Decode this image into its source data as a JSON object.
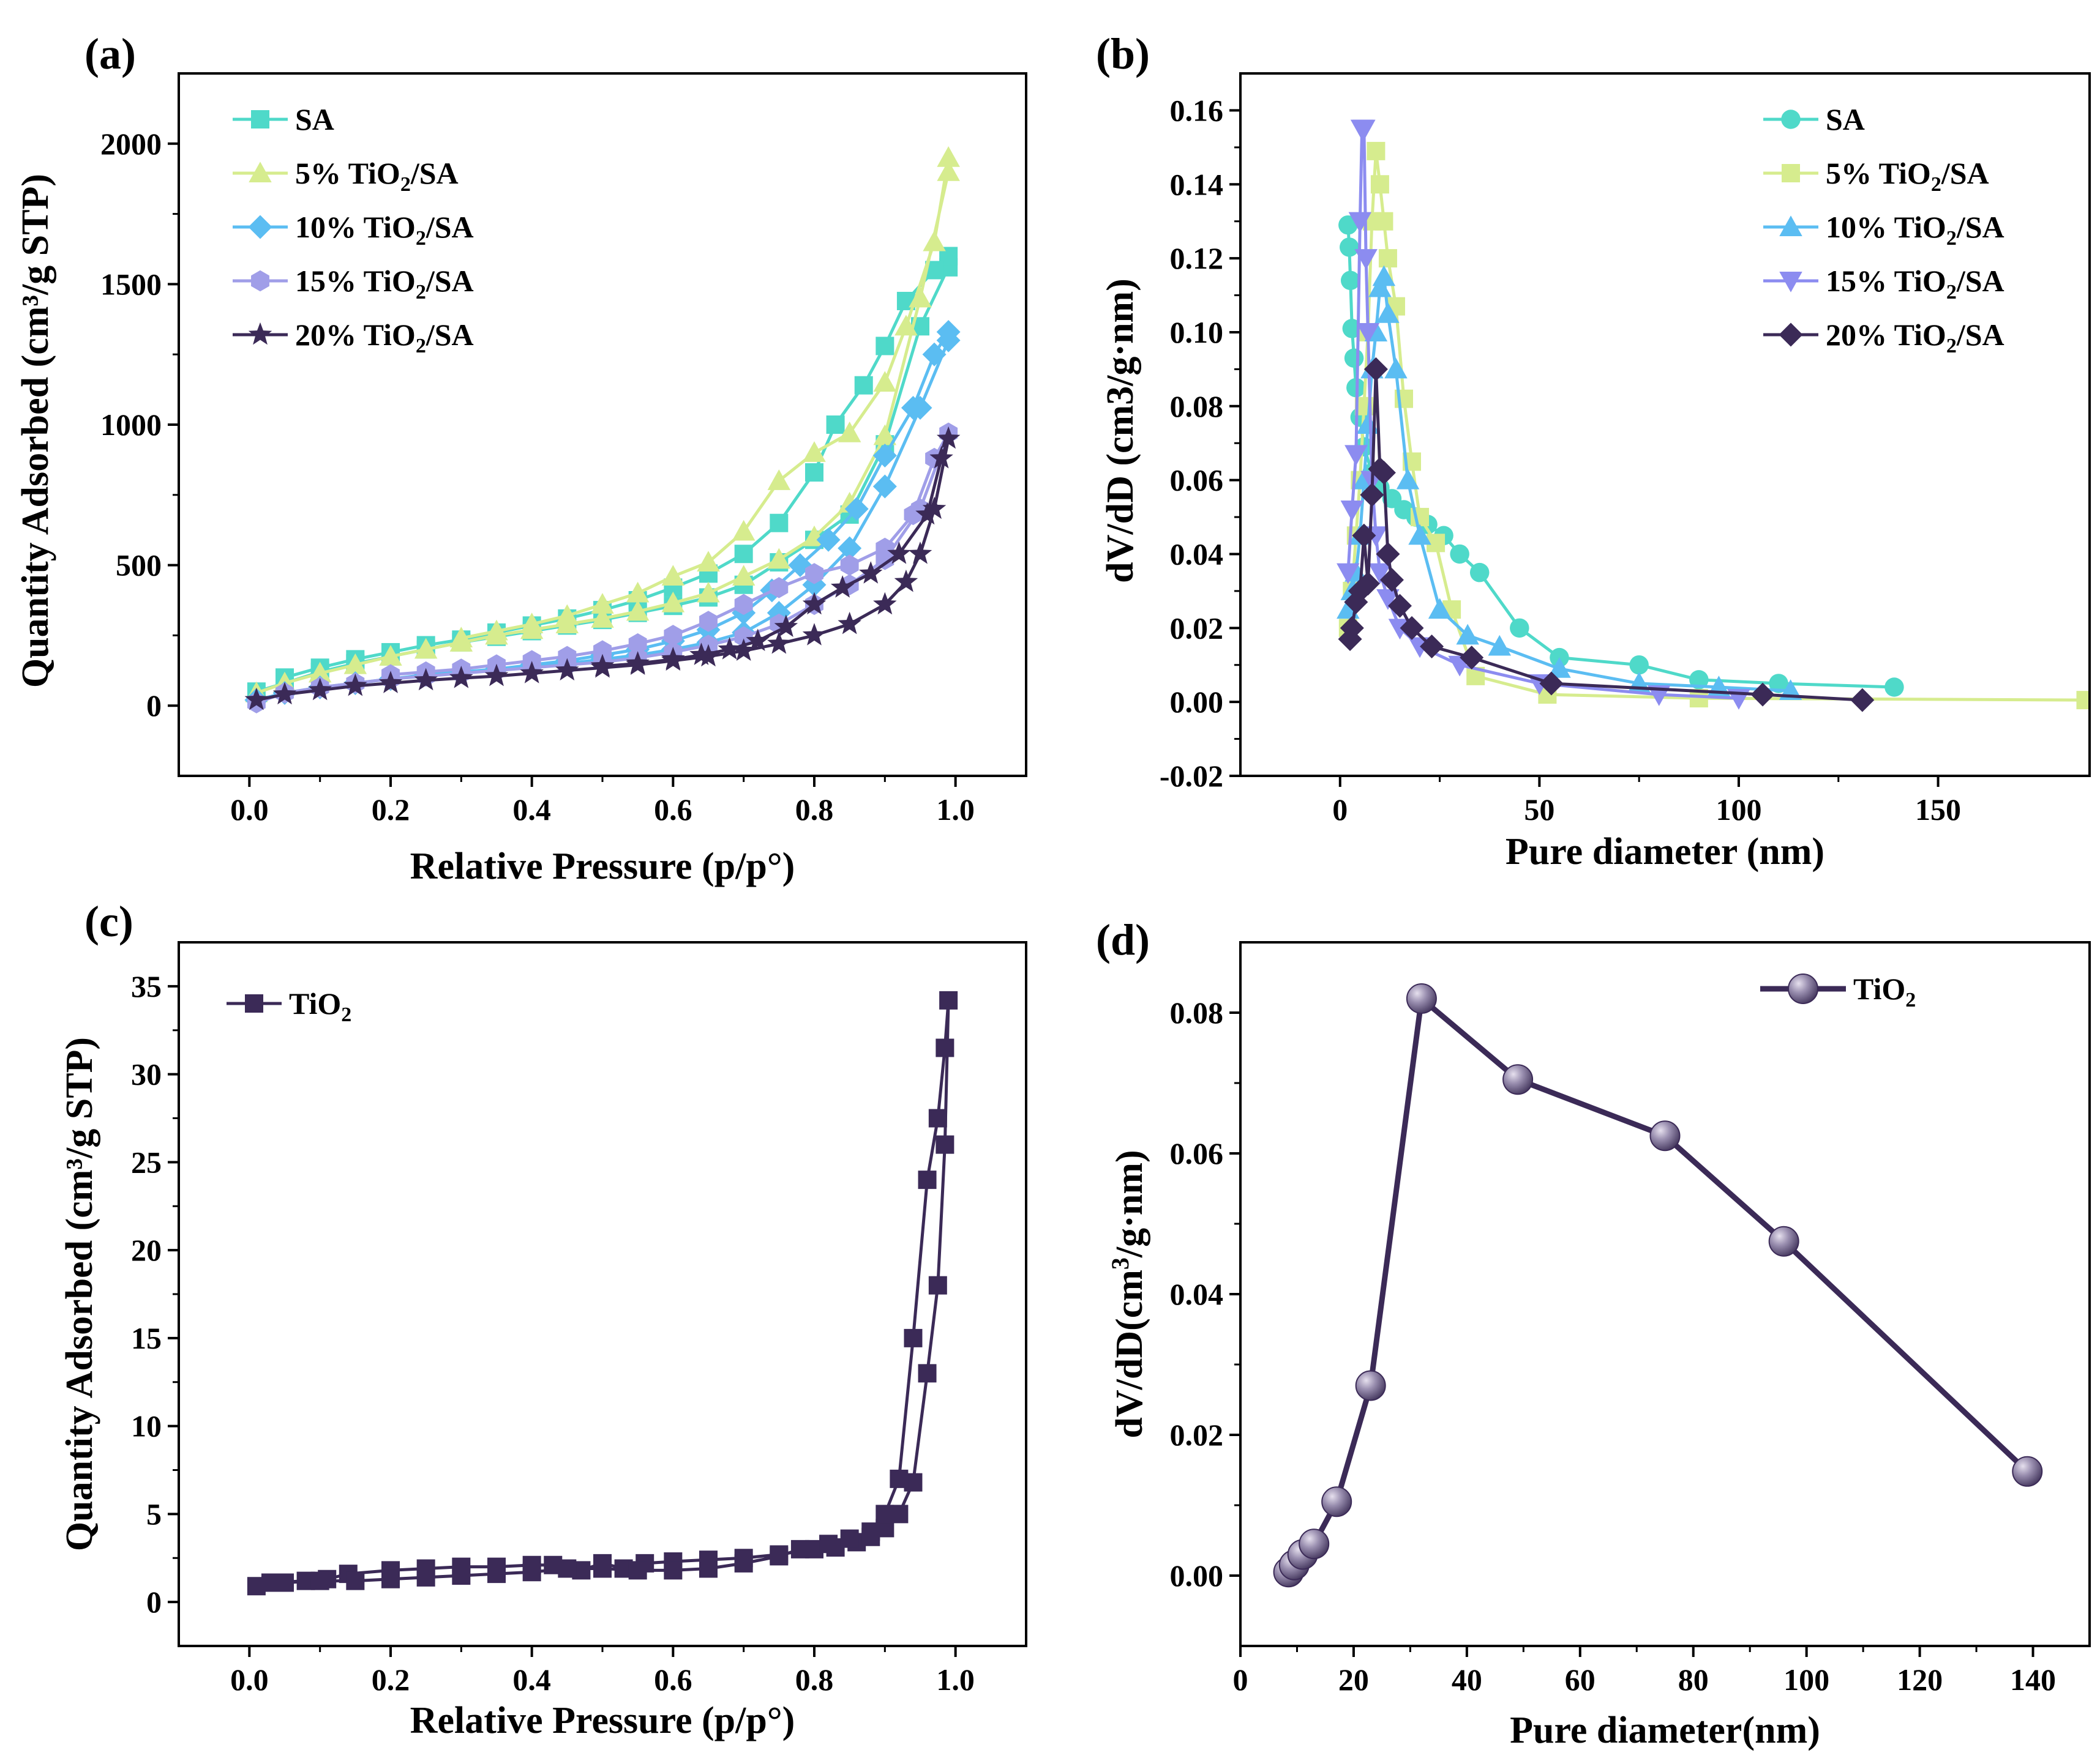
{
  "chart_data": [
    {
      "panel": "(a)",
      "type": "scatter",
      "xlabel": "Relative Pressure (p/p°)",
      "ylabel": "Quantity Adsorbed (cm³/g STP)",
      "xlim": [
        -0.1,
        1.1
      ],
      "ylim": [
        -250,
        2250
      ],
      "xticks": [
        0.0,
        0.2,
        0.4,
        0.6,
        0.8,
        1.0
      ],
      "xtick_labels": [
        "0.0",
        "0.2",
        "0.4",
        "0.6",
        "0.8",
        "1.0"
      ],
      "yticks": [
        0,
        500,
        1000,
        1500,
        2000
      ],
      "ytick_labels": [
        "0",
        "500",
        "1000",
        "1500",
        "2000"
      ],
      "legend_position": "top-left",
      "series": [
        {
          "name": "SA",
          "label_main": "SA",
          "label_sub": "",
          "label_tail": "",
          "marker": "square",
          "color": "#4fd9c9",
          "x": [
            0.01,
            0.05,
            0.1,
            0.15,
            0.2,
            0.25,
            0.3,
            0.35,
            0.4,
            0.45,
            0.5,
            0.55,
            0.6,
            0.65,
            0.7,
            0.75,
            0.8,
            0.85,
            0.9,
            0.95,
            0.99,
            0.99,
            0.97,
            0.93,
            0.9,
            0.87,
            0.83,
            0.8,
            0.75,
            0.7,
            0.65,
            0.6,
            0.55,
            0.5,
            0.45,
            0.4,
            0.35,
            0.3,
            0.25,
            0.2,
            0.15,
            0.1,
            0.05
          ],
          "y": [
            50,
            80,
            120,
            150,
            175,
            200,
            225,
            245,
            265,
            285,
            305,
            330,
            355,
            385,
            430,
            510,
            590,
            680,
            930,
            1350,
            1560,
            1600,
            1550,
            1440,
            1280,
            1140,
            1000,
            830,
            650,
            540,
            470,
            420,
            375,
            340,
            310,
            285,
            260,
            235,
            215,
            190,
            165,
            135,
            100
          ]
        },
        {
          "name": "5% TiO2/SA",
          "label_main": "5% TiO",
          "label_sub": "2",
          "label_tail": "/SA",
          "marker": "triangle-up",
          "color": "#d6ec8e",
          "x": [
            0.01,
            0.05,
            0.1,
            0.15,
            0.2,
            0.25,
            0.3,
            0.35,
            0.4,
            0.45,
            0.5,
            0.55,
            0.6,
            0.65,
            0.7,
            0.75,
            0.8,
            0.85,
            0.9,
            0.95,
            0.99,
            0.99,
            0.97,
            0.93,
            0.9,
            0.85,
            0.8,
            0.75,
            0.7,
            0.65,
            0.6,
            0.55,
            0.5,
            0.45,
            0.4,
            0.35,
            0.3
          ],
          "y": [
            45,
            80,
            115,
            145,
            175,
            200,
            225,
            250,
            270,
            290,
            310,
            335,
            365,
            400,
            460,
            520,
            600,
            720,
            960,
            1450,
            1900,
            1950,
            1650,
            1350,
            1150,
            970,
            900,
            800,
            620,
            510,
            460,
            400,
            360,
            320,
            290,
            265,
            240
          ]
        },
        {
          "name": "10% TiO2/SA",
          "label_main": "10% TiO",
          "label_sub": "2",
          "label_tail": "/SA",
          "marker": "diamond",
          "color": "#5bbdf2",
          "x": [
            0.01,
            0.05,
            0.1,
            0.15,
            0.2,
            0.25,
            0.3,
            0.35,
            0.4,
            0.45,
            0.5,
            0.55,
            0.6,
            0.65,
            0.7,
            0.75,
            0.8,
            0.85,
            0.9,
            0.95,
            0.99,
            0.99,
            0.97,
            0.94,
            0.9,
            0.86,
            0.82,
            0.78,
            0.74,
            0.7,
            0.65,
            0.6,
            0.55,
            0.5,
            0.45,
            0.4,
            0.35
          ],
          "y": [
            20,
            45,
            65,
            80,
            95,
            110,
            120,
            130,
            140,
            150,
            165,
            180,
            200,
            225,
            260,
            330,
            430,
            560,
            780,
            1060,
            1300,
            1330,
            1250,
            1060,
            890,
            700,
            590,
            500,
            410,
            330,
            270,
            230,
            200,
            180,
            160,
            145,
            130
          ]
        },
        {
          "name": "15% TiO2/SA",
          "label_main": "15% TiO",
          "label_sub": "2",
          "label_tail": "/SA",
          "marker": "hexagon",
          "color": "#a09ee8",
          "x": [
            0.01,
            0.05,
            0.1,
            0.15,
            0.2,
            0.25,
            0.3,
            0.35,
            0.4,
            0.45,
            0.5,
            0.55,
            0.6,
            0.65,
            0.7,
            0.75,
            0.8,
            0.85,
            0.9,
            0.95,
            0.99,
            0.97,
            0.94,
            0.9,
            0.85,
            0.8,
            0.75,
            0.7,
            0.65,
            0.6,
            0.55,
            0.5,
            0.45,
            0.4,
            0.35,
            0.3,
            0.25,
            0.2
          ],
          "y": [
            10,
            45,
            65,
            80,
            95,
            105,
            115,
            125,
            135,
            145,
            155,
            170,
            190,
            215,
            245,
            290,
            360,
            430,
            520,
            700,
            970,
            880,
            680,
            560,
            500,
            470,
            420,
            360,
            300,
            250,
            220,
            195,
            175,
            160,
            145,
            130,
            120,
            110
          ]
        },
        {
          "name": "20% TiO2/SA",
          "label_main": "20% TiO",
          "label_sub": "2",
          "label_tail": "/SA",
          "marker": "star",
          "color": "#3b2a57",
          "x": [
            0.01,
            0.05,
            0.1,
            0.15,
            0.2,
            0.25,
            0.3,
            0.35,
            0.4,
            0.45,
            0.5,
            0.55,
            0.6,
            0.65,
            0.7,
            0.75,
            0.8,
            0.85,
            0.9,
            0.93,
            0.95,
            0.97,
            0.99,
            0.98,
            0.96,
            0.92,
            0.88,
            0.84,
            0.8,
            0.76,
            0.72,
            0.68,
            0.64,
            0.6,
            0.55,
            0.5
          ],
          "y": [
            20,
            40,
            55,
            70,
            80,
            90,
            98,
            105,
            115,
            125,
            135,
            145,
            160,
            175,
            195,
            220,
            250,
            290,
            360,
            440,
            540,
            700,
            950,
            880,
            680,
            540,
            470,
            420,
            360,
            280,
            230,
            200,
            180,
            165,
            150,
            140
          ]
        }
      ]
    },
    {
      "panel": "(b)",
      "type": "scatter",
      "xlabel": "Pure diameter (nm)",
      "ylabel": "dV/dD (cm3/g·nm)",
      "xlim": [
        -25,
        188
      ],
      "ylim": [
        -0.02,
        0.17
      ],
      "xticks": [
        0,
        50,
        100,
        150
      ],
      "xtick_labels": [
        "0",
        "50",
        "100",
        "150"
      ],
      "yticks": [
        -0.02,
        0.0,
        0.02,
        0.04,
        0.06,
        0.08,
        0.1,
        0.12,
        0.14,
        0.16
      ],
      "ytick_labels": [
        "-0.02",
        "0.00",
        "0.02",
        "0.04",
        "0.06",
        "0.08",
        "0.10",
        "0.12",
        "0.14",
        "0.16"
      ],
      "legend_position": "top-right",
      "series": [
        {
          "name": "SA",
          "label_main": "SA",
          "label_sub": "",
          "label_tail": "",
          "marker": "circle",
          "color": "#4fd9c9",
          "x": [
            2,
            2.3,
            2.6,
            3,
            3.5,
            4,
            5,
            6,
            8,
            10,
            13,
            16,
            19,
            22,
            26,
            30,
            35,
            45,
            55,
            75,
            90,
            110,
            139
          ],
          "y": [
            0.129,
            0.123,
            0.114,
            0.101,
            0.093,
            0.085,
            0.077,
            0.069,
            0.062,
            0.058,
            0.055,
            0.052,
            0.05,
            0.048,
            0.045,
            0.04,
            0.035,
            0.02,
            0.012,
            0.01,
            0.006,
            0.005,
            0.004
          ]
        },
        {
          "name": "5% TiO2/SA",
          "label_main": "5% TiO",
          "label_sub": "2",
          "label_tail": "/SA",
          "marker": "square",
          "color": "#d6ec8e",
          "x": [
            2,
            3,
            4,
            5,
            6,
            7,
            8,
            9,
            10,
            11,
            12,
            14,
            16,
            18,
            20,
            24,
            28,
            34,
            52,
            90,
            187
          ],
          "y": [
            0.02,
            0.03,
            0.045,
            0.06,
            0.08,
            0.1,
            0.13,
            0.149,
            0.14,
            0.13,
            0.12,
            0.107,
            0.082,
            0.065,
            0.05,
            0.043,
            0.025,
            0.007,
            0.002,
            0.001,
            0.0005
          ]
        },
        {
          "name": "10% TiO2/SA",
          "label_main": "10% TiO",
          "label_sub": "2",
          "label_tail": "/SA",
          "marker": "triangle-up",
          "color": "#5bbdf2",
          "x": [
            2,
            3,
            4,
            5,
            6,
            7,
            8,
            9,
            10,
            11,
            12,
            14,
            17,
            20,
            25,
            32,
            40,
            55,
            75,
            95,
            113
          ],
          "y": [
            0.025,
            0.03,
            0.035,
            0.045,
            0.06,
            0.075,
            0.09,
            0.1,
            0.112,
            0.115,
            0.105,
            0.09,
            0.06,
            0.045,
            0.025,
            0.018,
            0.015,
            0.009,
            0.005,
            0.004,
            0.003
          ]
        },
        {
          "name": "15% TiO2/SA",
          "label_main": "15% TiO",
          "label_sub": "2",
          "label_tail": "/SA",
          "marker": "triangle-down",
          "color": "#8c8cf0",
          "x": [
            2,
            3,
            4,
            5,
            5.5,
            6,
            6.5,
            7,
            8,
            9,
            10,
            12,
            15,
            20,
            30,
            50,
            80,
            100
          ],
          "y": [
            0.035,
            0.052,
            0.067,
            0.13,
            0.155,
            0.155,
            0.12,
            0.1,
            0.06,
            0.045,
            0.035,
            0.028,
            0.02,
            0.015,
            0.01,
            0.005,
            0.002,
            0.001
          ]
        },
        {
          "name": "20% TiO2/SA",
          "label_main": "20% TiO",
          "label_sub": "2",
          "label_tail": "/SA",
          "marker": "diamond",
          "color": "#3b2a57",
          "x": [
            2.5,
            3,
            4,
            5,
            6,
            7,
            8,
            9,
            10,
            11,
            12,
            13,
            15,
            18,
            23,
            33,
            53,
            106,
            131
          ],
          "y": [
            0.017,
            0.02,
            0.027,
            0.03,
            0.045,
            0.032,
            0.056,
            0.09,
            0.063,
            0.062,
            0.04,
            0.033,
            0.026,
            0.02,
            0.015,
            0.012,
            0.005,
            0.002,
            0.0005
          ]
        }
      ]
    },
    {
      "panel": "(c)",
      "type": "scatter",
      "xlabel": "Relative Pressure (p/p°)",
      "ylabel": "Quantity Adsorbed (cm³/g STP)",
      "xlim": [
        -0.1,
        1.1
      ],
      "ylim": [
        -2.5,
        37.5
      ],
      "xticks": [
        0.0,
        0.2,
        0.4,
        0.6,
        0.8,
        1.0
      ],
      "xtick_labels": [
        "0.0",
        "0.2",
        "0.4",
        "0.6",
        "0.8",
        "1.0"
      ],
      "yticks": [
        0,
        5,
        10,
        15,
        20,
        25,
        30,
        35
      ],
      "ytick_labels": [
        "0",
        "5",
        "10",
        "15",
        "20",
        "25",
        "30",
        "35"
      ],
      "legend_position": "top-left",
      "series": [
        {
          "name": "TiO2",
          "label_main": "TiO",
          "label_sub": "2",
          "label_tail": "",
          "marker": "square",
          "color": "#3b2a57",
          "x": [
            0.01,
            0.03,
            0.08,
            0.11,
            0.14,
            0.2,
            0.25,
            0.3,
            0.35,
            0.4,
            0.43,
            0.47,
            0.5,
            0.53,
            0.56,
            0.6,
            0.65,
            0.7,
            0.75,
            0.8,
            0.83,
            0.86,
            0.88,
            0.9,
            0.92,
            0.94,
            0.96,
            0.975,
            0.985,
            0.99,
            0.985,
            0.975,
            0.96,
            0.94,
            0.92,
            0.9,
            0.88,
            0.85,
            0.82,
            0.78,
            0.75,
            0.7,
            0.65,
            0.6,
            0.55,
            0.5,
            0.45,
            0.4,
            0.35,
            0.3,
            0.25,
            0.2,
            0.15,
            0.1,
            0.05
          ],
          "y": [
            0.9,
            1.1,
            1.2,
            1.3,
            1.6,
            1.8,
            1.9,
            2.0,
            2.0,
            2.1,
            2.1,
            1.8,
            2.2,
            1.9,
            2.2,
            2.3,
            2.4,
            2.5,
            2.7,
            3.0,
            3.1,
            3.4,
            3.7,
            4.2,
            5.0,
            6.8,
            13,
            18,
            26,
            34.2,
            31.5,
            27.5,
            24,
            15,
            7,
            5,
            4,
            3.6,
            3.3,
            3,
            2.6,
            2.2,
            1.9,
            1.8,
            1.8,
            1.9,
            1.9,
            1.7,
            1.6,
            1.5,
            1.4,
            1.3,
            1.2,
            1.2,
            1.1
          ]
        }
      ]
    },
    {
      "panel": "(d)",
      "type": "line",
      "xlabel": "Pure diameter(nm)",
      "ylabel": "dV/dD(cm3/g·nm)",
      "ylabel_main": "dV/dD(cm",
      "ylabel_sup": "3",
      "ylabel_tail": "/g·nm)",
      "xlim": [
        0,
        150
      ],
      "ylim": [
        -0.01,
        0.09
      ],
      "xticks": [
        0,
        20,
        40,
        60,
        80,
        100,
        120,
        140
      ],
      "xtick_labels": [
        "0",
        "20",
        "40",
        "60",
        "80",
        "100",
        "120",
        "140"
      ],
      "yticks": [
        0.0,
        0.02,
        0.04,
        0.06,
        0.08
      ],
      "ytick_labels": [
        "0.00",
        "0.02",
        "0.04",
        "0.06",
        "0.08"
      ],
      "legend_position": "top-right",
      "series": [
        {
          "name": "TiO2",
          "label_main": "TiO",
          "label_sub": "2",
          "label_tail": "",
          "marker": "sphere",
          "color": "#3b2a57",
          "marker_color": "#8b7fa0",
          "x": [
            8.5,
            9.5,
            11,
            13,
            17,
            23,
            32,
            49,
            75,
            96,
            139
          ],
          "y": [
            0.0005,
            0.0015,
            0.003,
            0.0045,
            0.0105,
            0.027,
            0.082,
            0.0705,
            0.0625,
            0.0475,
            0.0148
          ]
        }
      ]
    }
  ]
}
